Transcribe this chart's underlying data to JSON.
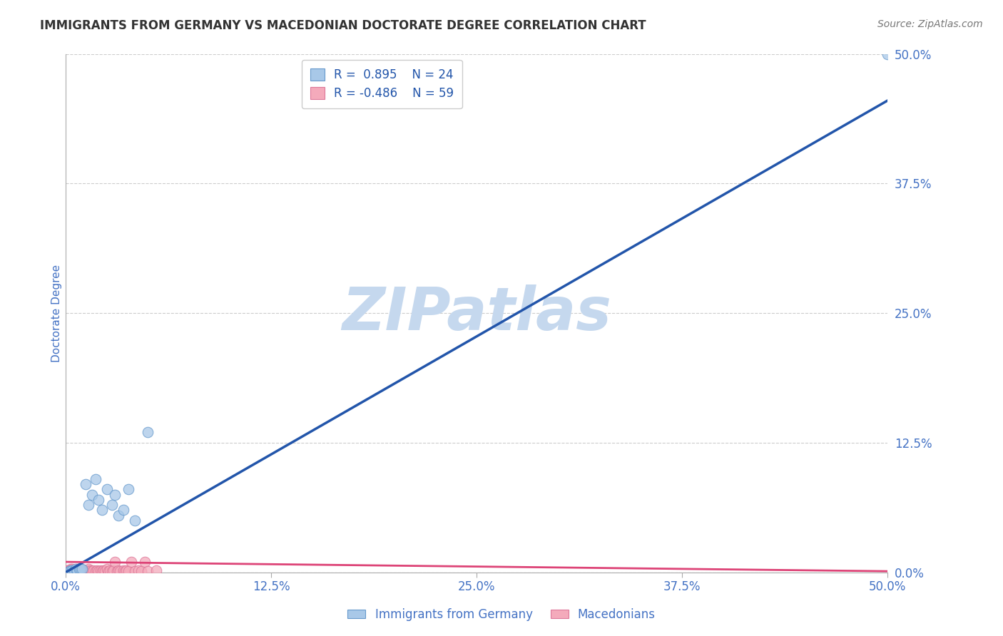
{
  "title": "IMMIGRANTS FROM GERMANY VS MACEDONIAN DOCTORATE DEGREE CORRELATION CHART",
  "source": "Source: ZipAtlas.com",
  "ylabel": "Doctorate Degree",
  "xlim": [
    0.0,
    0.5
  ],
  "ylim": [
    0.0,
    0.5
  ],
  "xticks": [
    0.0,
    0.125,
    0.25,
    0.375,
    0.5
  ],
  "xtick_labels": [
    "0.0%",
    "12.5%",
    "25.0%",
    "37.5%",
    "50.0%"
  ],
  "yticks": [
    0.0,
    0.125,
    0.25,
    0.375,
    0.5
  ],
  "ytick_labels": [
    "0.0%",
    "12.5%",
    "25.0%",
    "37.5%",
    "50.0%"
  ],
  "grid_color": "#cccccc",
  "background_color": "#ffffff",
  "blue_color": "#A8C8E8",
  "blue_edge_color": "#6699CC",
  "pink_color": "#F4AABB",
  "pink_edge_color": "#DD7799",
  "blue_line_color": "#2255AA",
  "pink_line_color": "#DD4477",
  "title_color": "#333333",
  "axis_label_color": "#4472C4",
  "tick_label_color": "#4472C4",
  "watermark_color": "#C5D8EE",
  "legend_R_blue": "R =  0.895",
  "legend_N_blue": "N = 24",
  "legend_R_pink": "R = -0.486",
  "legend_N_pink": "N = 59",
  "legend_label_blue": "Immigrants from Germany",
  "legend_label_pink": "Macedonians",
  "blue_points_x": [
    0.002,
    0.003,
    0.004,
    0.005,
    0.006,
    0.007,
    0.008,
    0.009,
    0.01,
    0.012,
    0.014,
    0.016,
    0.018,
    0.02,
    0.022,
    0.025,
    0.028,
    0.03,
    0.032,
    0.035,
    0.038,
    0.042,
    0.05,
    0.5
  ],
  "blue_points_y": [
    0.001,
    0.002,
    0.002,
    0.002,
    0.003,
    0.002,
    0.003,
    0.003,
    0.003,
    0.085,
    0.065,
    0.075,
    0.09,
    0.07,
    0.06,
    0.08,
    0.065,
    0.075,
    0.055,
    0.06,
    0.08,
    0.05,
    0.135,
    0.5
  ],
  "pink_points_x": [
    0.001,
    0.001,
    0.002,
    0.002,
    0.003,
    0.003,
    0.004,
    0.004,
    0.005,
    0.005,
    0.006,
    0.006,
    0.007,
    0.007,
    0.008,
    0.008,
    0.009,
    0.009,
    0.01,
    0.01,
    0.011,
    0.011,
    0.012,
    0.012,
    0.013,
    0.013,
    0.014,
    0.014,
    0.015,
    0.015,
    0.016,
    0.017,
    0.018,
    0.019,
    0.02,
    0.021,
    0.022,
    0.023,
    0.024,
    0.025,
    0.026,
    0.027,
    0.028,
    0.029,
    0.03,
    0.031,
    0.032,
    0.033,
    0.035,
    0.036,
    0.037,
    0.038,
    0.04,
    0.042,
    0.044,
    0.046,
    0.048,
    0.05,
    0.055
  ],
  "pink_points_y": [
    0.001,
    0.002,
    0.001,
    0.002,
    0.001,
    0.003,
    0.002,
    0.003,
    0.001,
    0.002,
    0.001,
    0.002,
    0.001,
    0.003,
    0.002,
    0.001,
    0.002,
    0.003,
    0.001,
    0.002,
    0.001,
    0.002,
    0.001,
    0.002,
    0.001,
    0.002,
    0.001,
    0.003,
    0.001,
    0.002,
    0.001,
    0.002,
    0.001,
    0.002,
    0.001,
    0.002,
    0.001,
    0.002,
    0.001,
    0.003,
    0.001,
    0.002,
    0.001,
    0.002,
    0.01,
    0.001,
    0.002,
    0.001,
    0.002,
    0.001,
    0.002,
    0.001,
    0.01,
    0.001,
    0.002,
    0.001,
    0.01,
    0.001,
    0.002
  ],
  "blue_line_x_start": 0.0,
  "blue_line_x_end": 0.5,
  "blue_line_y_start": 0.0,
  "blue_line_y_end": 0.455,
  "pink_line_x_start": 0.0,
  "pink_line_x_end": 0.5,
  "pink_line_y_start": 0.01,
  "pink_line_y_end": 0.001,
  "marker_size": 110,
  "title_fontsize": 12,
  "source_fontsize": 10,
  "axis_label_fontsize": 11,
  "tick_fontsize": 12,
  "legend_fontsize": 12,
  "watermark_text": "ZIPatlas",
  "watermark_fontsize": 60
}
